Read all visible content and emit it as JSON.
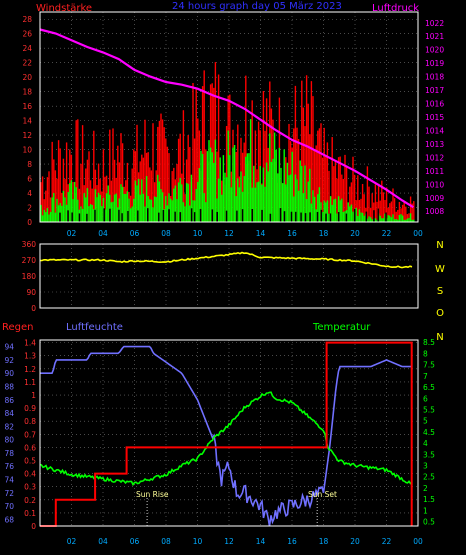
{
  "chart_data": [
    {
      "type": "bar",
      "title": "24 hours graph day  05 März 2023",
      "ylabel_left": "Windstärke",
      "ylabel_right": "Luftdruck",
      "x_ticks": [
        "02",
        "04",
        "06",
        "08",
        "10",
        "12",
        "14",
        "16",
        "18",
        "20",
        "22",
        "00"
      ],
      "y_left_ticks": [
        "0",
        "2",
        "4",
        "6",
        "8",
        "10",
        "12",
        "14",
        "16",
        "18",
        "20",
        "22",
        "24",
        "26",
        "28"
      ],
      "y_right_ticks": [
        "1008",
        "1009",
        "1010",
        "1011",
        "1012",
        "1013",
        "1014",
        "1015",
        "1016",
        "1017",
        "1018",
        "1019",
        "1020",
        "1021",
        "1022"
      ],
      "ylim_left": [
        0,
        29
      ],
      "ylim_right": [
        1007.2,
        1022.8
      ],
      "colors": {
        "gust": "#ff0000",
        "wind": "#00ff00",
        "pressure": "#ff00ff",
        "direction_marks": "#000000"
      },
      "series": [
        {
          "name": "Luftdruck",
          "x_hours": [
            0,
            1,
            2,
            3,
            4,
            5,
            6,
            7,
            8,
            9,
            10,
            11,
            12,
            13,
            14,
            15,
            16,
            17,
            18,
            19,
            20,
            21,
            22,
            23,
            23.7
          ],
          "values": [
            1021.5,
            1021.2,
            1020.7,
            1020.2,
            1019.8,
            1019.3,
            1018.5,
            1018.0,
            1017.6,
            1017.4,
            1017.1,
            1016.6,
            1016.2,
            1015.6,
            1014.8,
            1014.0,
            1013.3,
            1012.8,
            1012.2,
            1011.6,
            1011.0,
            1010.3,
            1009.6,
            1008.8,
            1008.3
          ]
        },
        {
          "name": "Windstärke (Böen)",
          "x_hours": [
            0,
            1,
            2,
            3,
            4,
            5,
            6,
            7,
            8,
            9,
            10,
            11,
            12,
            13,
            14,
            15,
            16,
            17,
            18,
            19,
            20,
            21,
            22,
            23
          ],
          "values": [
            8,
            12,
            14,
            12,
            11,
            14,
            12,
            16,
            13,
            14,
            19,
            23,
            18,
            22,
            21,
            17,
            18,
            20,
            12,
            10,
            8,
            7,
            5,
            4
          ]
        },
        {
          "name": "Windstärke (Mittel)",
          "x_hours": [
            0,
            1,
            2,
            3,
            4,
            5,
            6,
            7,
            8,
            9,
            10,
            11,
            12,
            13,
            14,
            15,
            16,
            17,
            18,
            19,
            20,
            21,
            22,
            23
          ],
          "values": [
            2,
            4,
            5,
            4,
            4,
            5,
            5,
            6,
            5,
            7,
            8,
            10,
            11,
            12,
            13,
            11,
            9,
            8,
            4,
            3,
            2,
            1,
            1,
            1
          ]
        }
      ]
    },
    {
      "type": "line",
      "ylabel_right": [
        "N",
        "W",
        "S",
        "O",
        "N"
      ],
      "y_ticks": [
        "0",
        "90",
        "180",
        "270",
        "360"
      ],
      "ylim": [
        0,
        360
      ],
      "x_hours": [
        0,
        4,
        5,
        6,
        8,
        10,
        12,
        13,
        14,
        16,
        18,
        19,
        20,
        21,
        22,
        23,
        23.7
      ],
      "values": [
        270,
        270,
        260,
        265,
        260,
        280,
        300,
        312,
        285,
        280,
        275,
        270,
        265,
        250,
        235,
        230,
        232
      ],
      "color": "#ffff00"
    },
    {
      "type": "line",
      "labels": {
        "left_top": "Regen",
        "left_mid": "Luftfeuchte",
        "right": "Temperatur"
      },
      "annotations": {
        "sunrise": "Sun Rise",
        "sunset": "Sun Set"
      },
      "humidity_ticks": [
        "68",
        "70",
        "72",
        "74",
        "76",
        "78",
        "80",
        "82",
        "84",
        "86",
        "88",
        "90",
        "92",
        "94"
      ],
      "rain_ticks": [
        "0",
        "0.1",
        "0.2",
        "0.3",
        "0.4",
        "0.5",
        "0.6",
        "0.7",
        "0.8",
        "0.9",
        "1",
        "1.1",
        "1.2",
        "1.3",
        "1.4"
      ],
      "temp_ticks": [
        "0.5",
        "1",
        "1.5",
        "2",
        "2.5",
        "3",
        "3.5",
        "4",
        "4.5",
        "5",
        "5.5",
        "6",
        "6.5",
        "7",
        "7.5",
        "8",
        "8.5"
      ],
      "colors": {
        "humidity": "#7070ff",
        "rain": "#ff0000",
        "temp": "#00ff00"
      },
      "humidity": {
        "x_hours": [
          0,
          0.8,
          1,
          3,
          3.2,
          5,
          5.3,
          7,
          7.2,
          9,
          10,
          11,
          11.5,
          12,
          12.5,
          13,
          14,
          14.5,
          15,
          16,
          17,
          18,
          18.4,
          18.8,
          19,
          20,
          21,
          22,
          23,
          23.7
        ],
        "values": [
          90,
          90,
          92,
          92,
          93,
          93,
          94,
          94,
          93,
          90,
          86,
          80,
          74,
          76,
          72,
          72,
          70,
          68,
          69,
          70,
          71,
          72,
          79,
          88,
          91,
          91,
          91,
          92,
          91,
          91
        ]
      },
      "rain": {
        "x_hours": [
          0,
          1,
          1,
          3.5,
          3.5,
          5.5,
          5.5,
          18.2,
          18.2,
          23.6,
          23.6
        ],
        "values": [
          0,
          0,
          0.2,
          0.2,
          0.4,
          0.4,
          0.6,
          0.6,
          1.4,
          1.4,
          0
        ]
      },
      "temp": {
        "x_hours": [
          0,
          1,
          2,
          3,
          4,
          5,
          6,
          7,
          8,
          9,
          10,
          11,
          12,
          13,
          14,
          14.5,
          15,
          16,
          17,
          18,
          18.3,
          19,
          20,
          21,
          22,
          23,
          23.7
        ],
        "values": [
          3.0,
          2.8,
          2.6,
          2.5,
          2.4,
          2.3,
          2.2,
          2.4,
          2.6,
          3.0,
          3.3,
          4.2,
          4.8,
          5.6,
          6.1,
          6.3,
          6.0,
          5.8,
          5.2,
          4.6,
          3.8,
          3.2,
          3.0,
          2.9,
          2.8,
          2.4,
          2.1
        ]
      }
    }
  ]
}
